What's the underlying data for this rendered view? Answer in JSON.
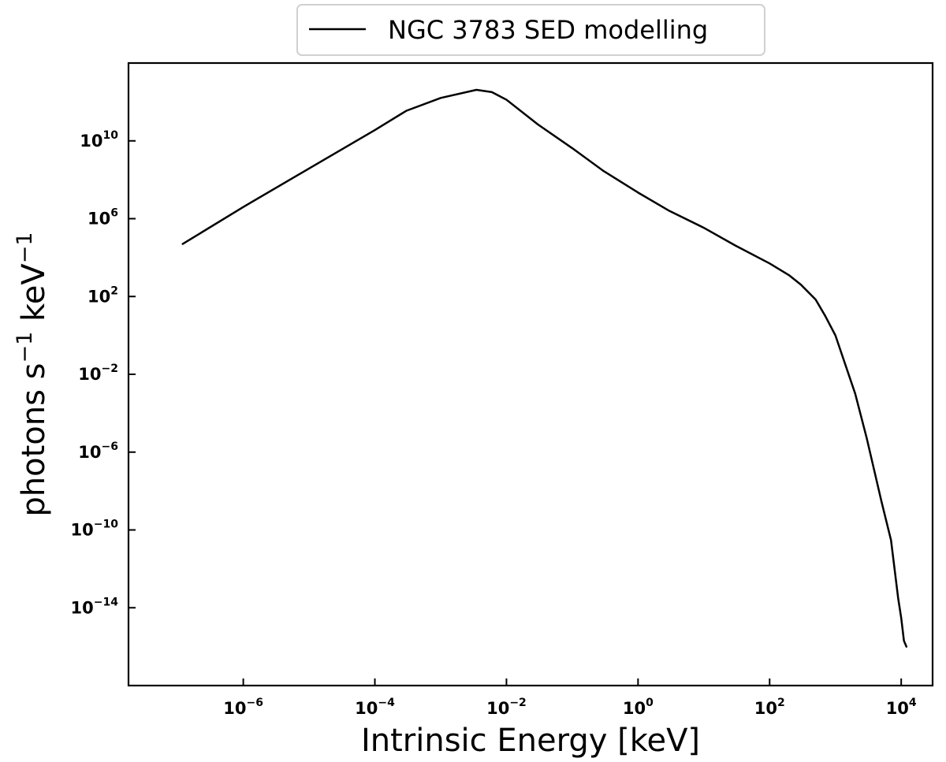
{
  "chart_data": {
    "type": "line",
    "title": "",
    "xlabel": "Intrinsic Energy [keV]",
    "ylabel_base": "photons s",
    "ylabel_exp1": "−1",
    "ylabel_mid": " keV",
    "ylabel_exp2": "−1",
    "x_scale": "log",
    "y_scale": "log",
    "xlim": [
      1.8e-08,
      30000.0
    ],
    "ylim": [
      1e-18,
      100000000000000.0
    ],
    "grid": false,
    "legend_placement": "top-center",
    "x_ticks": [
      {
        "value": 1e-06,
        "base": "10",
        "exp": "−6"
      },
      {
        "value": 0.0001,
        "base": "10",
        "exp": "−4"
      },
      {
        "value": 0.01,
        "base": "10",
        "exp": "−2"
      },
      {
        "value": 1,
        "base": "10",
        "exp": "0"
      },
      {
        "value": 100,
        "base": "10",
        "exp": "2"
      },
      {
        "value": 10000,
        "base": "10",
        "exp": "4"
      }
    ],
    "y_ticks": [
      {
        "value": 10000000000.0,
        "base": "10",
        "exp": "10"
      },
      {
        "value": 1000000.0,
        "base": "10",
        "exp": "6"
      },
      {
        "value": 100,
        "base": "10",
        "exp": "2"
      },
      {
        "value": 0.01,
        "base": "10",
        "exp": "−2"
      },
      {
        "value": 1e-06,
        "base": "10",
        "exp": "−6"
      },
      {
        "value": 1e-10,
        "base": "10",
        "exp": "−10"
      },
      {
        "value": 1e-14,
        "base": "10",
        "exp": "−14"
      }
    ],
    "series": [
      {
        "name": "NGC 3783 SED modelling",
        "color": "#000000",
        "x": [
          1.2e-07,
          1e-06,
          1e-05,
          0.0001,
          0.0003,
          0.001,
          0.0035,
          0.006,
          0.01,
          0.03,
          0.1,
          0.3,
          1,
          3,
          10,
          30,
          100,
          200,
          300,
          500,
          700,
          1000,
          2000,
          3000,
          5000,
          7000,
          9000,
          10000,
          11000,
          12000
        ],
        "y": [
          50000.0,
          4000000.0,
          380000000.0,
          36000000000.0,
          350000000000.0,
          1600000000000.0,
          4200000000000.0,
          3200000000000.0,
          1300000000000.0,
          70000000000.0,
          4200000000.0,
          280000000.0,
          22000000.0,
          2500000.0,
          340000.0,
          42000.0,
          5000.0,
          1200.0,
          400,
          70,
          10,
          1,
          0.001,
          5e-06,
          3e-09,
          3e-11,
          3e-14,
          3e-15,
          2e-16,
          1e-16
        ]
      }
    ]
  }
}
